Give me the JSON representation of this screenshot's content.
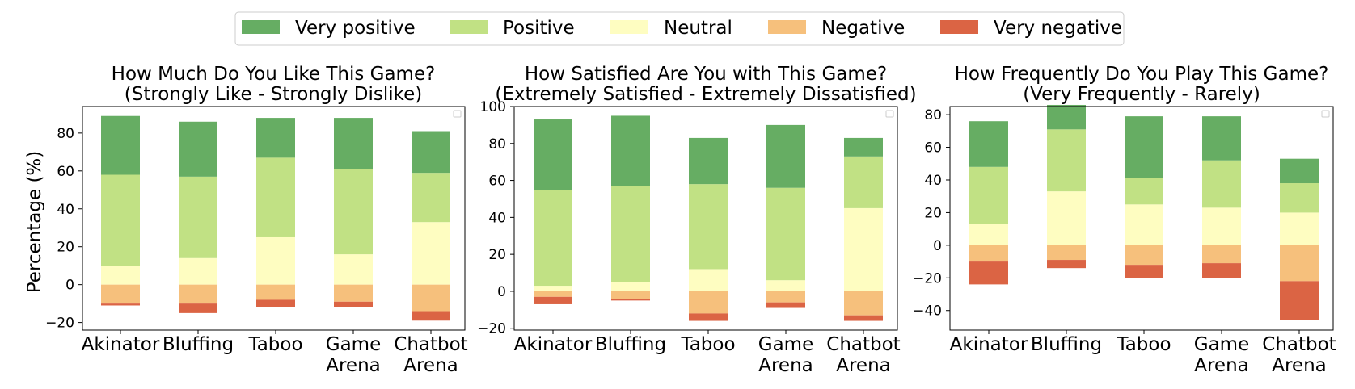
{
  "legend": {
    "placement": "top-center",
    "items": [
      {
        "label": "Very positive",
        "color": "#66AD63"
      },
      {
        "label": "Positive",
        "color": "#C1E184"
      },
      {
        "label": "Neutral",
        "color": "#FEFDC1"
      },
      {
        "label": "Negative",
        "color": "#F6C07C"
      },
      {
        "label": "Very negative",
        "color": "#DB6444"
      }
    ]
  },
  "ylabel": "Percentage (%)",
  "chart_data": [
    {
      "type": "bar",
      "stacked": true,
      "title": "How Much Do You Like This Game?",
      "subtitle": "(Strongly Like - Strongly Dislike)",
      "categories": [
        "Akinator",
        "Bluffing",
        "Taboo",
        "Game\nArena",
        "Chatbot\nArena"
      ],
      "ylim": [
        -24,
        94
      ],
      "yticks": [
        -20,
        0,
        20,
        40,
        60,
        80
      ],
      "series": [
        {
          "name": "Very positive",
          "values": [
            31,
            29,
            21,
            27,
            22
          ]
        },
        {
          "name": "Positive",
          "values": [
            48,
            43,
            42,
            45,
            26
          ]
        },
        {
          "name": "Neutral",
          "values": [
            10,
            14,
            25,
            16,
            33
          ]
        },
        {
          "name": "Negative",
          "values": [
            -10,
            -10,
            -8,
            -9,
            -14
          ]
        },
        {
          "name": "Very negative",
          "values": [
            -1,
            -5,
            -4,
            -3,
            -5
          ]
        }
      ]
    },
    {
      "type": "bar",
      "stacked": true,
      "title": "How Satisfied Are You with This Game?",
      "subtitle": "(Extremely Satisfied - Extremely Dissatisfied)",
      "categories": [
        "Akinator",
        "Bluffing",
        "Taboo",
        "Game\nArena",
        "Chatbot\nArena"
      ],
      "ylim": [
        -21,
        100
      ],
      "yticks": [
        -20,
        0,
        20,
        40,
        60,
        80,
        100
      ],
      "series": [
        {
          "name": "Very positive",
          "values": [
            38,
            38,
            25,
            34,
            10
          ]
        },
        {
          "name": "Positive",
          "values": [
            52,
            52,
            46,
            50,
            28
          ]
        },
        {
          "name": "Neutral",
          "values": [
            3,
            5,
            12,
            6,
            45
          ]
        },
        {
          "name": "Negative",
          "values": [
            -3,
            -4,
            -12,
            -6,
            -13
          ]
        },
        {
          "name": "Very negative",
          "values": [
            -4,
            -1,
            -4,
            -3,
            -3
          ]
        }
      ]
    },
    {
      "type": "bar",
      "stacked": true,
      "title": "How Frequently Do You Play This Game?",
      "subtitle": "(Very Frequently - Rarely)",
      "categories": [
        "Akinator",
        "Bluffing",
        "Taboo",
        "Game\nArena",
        "Chatbot\nArena"
      ],
      "ylim": [
        -52,
        85
      ],
      "yticks": [
        -40,
        -20,
        0,
        20,
        40,
        60,
        80
      ],
      "series": [
        {
          "name": "Very positive",
          "values": [
            28,
            15,
            38,
            27,
            15
          ]
        },
        {
          "name": "Positive",
          "values": [
            35,
            38,
            16,
            29,
            18
          ]
        },
        {
          "name": "Neutral",
          "values": [
            13,
            33,
            25,
            23,
            20
          ]
        },
        {
          "name": "Negative",
          "values": [
            -10,
            -9,
            -12,
            -11,
            -22
          ]
        },
        {
          "name": "Very negative",
          "values": [
            -14,
            -5,
            -8,
            -9,
            -24
          ]
        }
      ]
    }
  ]
}
